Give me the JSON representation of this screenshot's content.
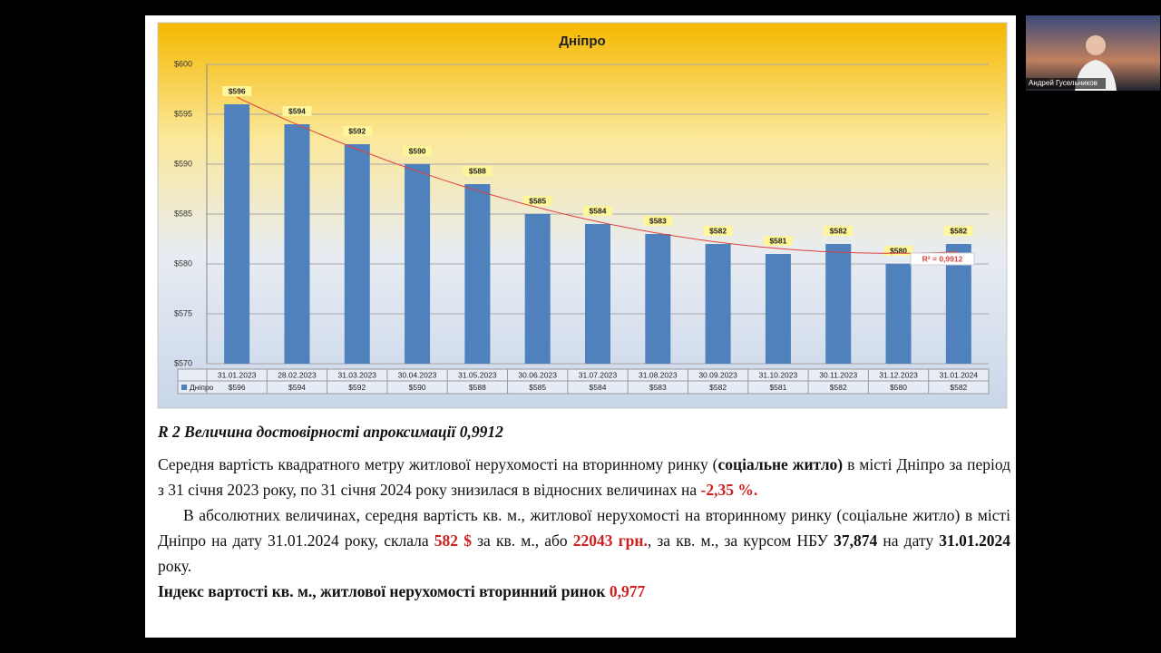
{
  "chart_data": {
    "type": "bar",
    "title": "Дніпро",
    "categories": [
      "31.01.2023",
      "28.02.2023",
      "31.03.2023",
      "30.04.2023",
      "31.05.2023",
      "30.06.2023",
      "31.07.2023",
      "31.08.2023",
      "30.09.2023",
      "31.10.2023",
      "30.11.2023",
      "31.12.2023",
      "31.01.2024"
    ],
    "series": [
      {
        "name": "Дніпро",
        "color": "#4f81bd",
        "values": [
          596,
          594,
          592,
          590,
          588,
          585,
          584,
          583,
          582,
          581,
          582,
          580,
          582
        ],
        "value_labels": [
          "$596",
          "$594",
          "$592",
          "$590",
          "$588",
          "$585",
          "$584",
          "$583",
          "$582",
          "$581",
          "$582",
          "$580",
          "$582"
        ]
      }
    ],
    "ylim": [
      570,
      600
    ],
    "yticks": [
      {
        "value": 570,
        "label": "$570"
      },
      {
        "value": 575,
        "label": "$575"
      },
      {
        "value": 580,
        "label": "$580"
      },
      {
        "value": 585,
        "label": "$585"
      },
      {
        "value": 590,
        "label": "$590"
      },
      {
        "value": 595,
        "label": "$595"
      },
      {
        "value": 600,
        "label": "$600"
      }
    ],
    "grid": true,
    "trendline_color": "#e04040",
    "trendline_label": "R² = 0,9912"
  },
  "slide_text": {
    "caption": "R 2 Величина достовірності апроксимації 0,9912",
    "p1": [
      " Середня вартість квадратного метру житлової нерухомості на вторинному ринку (",
      "соціальне житло)",
      " в місті Дніпро за період з 31 січня 2023 року, по 31 січня 2024 року  знизилася в відносних величинах на ",
      "-2,35 %."
    ],
    "p2": [
      "В абсолютних величинах, середня вартість кв. м., житлової нерухомості на вторинному ринку (соціальне житло) в місті Дніпро на дату 31.01.2024 року, склала ",
      "582 $",
      " за кв. м., або ",
      "22043 грн.",
      ", за кв. м., за курсом НБУ ",
      "37,874",
      " на дату ",
      "31.01.2024",
      " року."
    ],
    "p3": [
      "Індекс вартості кв. м., житлової нерухомості вторинний ринок ",
      "0,977"
    ]
  },
  "video_tile": {
    "participant": "Андрей Гусельников"
  }
}
